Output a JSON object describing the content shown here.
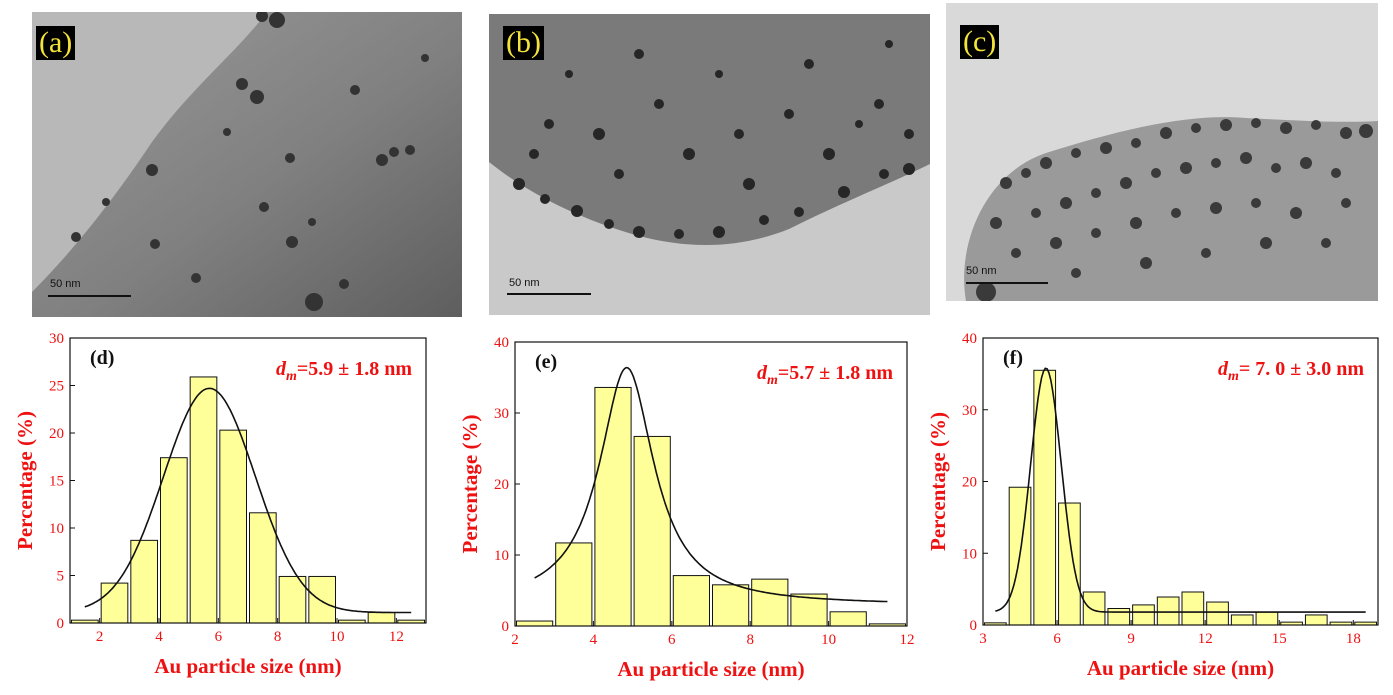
{
  "tem_panels": [
    {
      "tag": "(a)",
      "scale": "50 nm"
    },
    {
      "tag": "(b)",
      "scale": "50 nm"
    },
    {
      "tag": "(c)",
      "scale": "50 nm"
    }
  ],
  "colors": {
    "bar_fill": "#ffff99",
    "axis_text": "#ee1111",
    "curve": "#111111"
  },
  "chart_data": [
    {
      "type": "bar",
      "panel_tag": "(d)",
      "dm_prefix": "d",
      "dm_sub": "m",
      "dm_value": "=5.9 ± 1.8 nm",
      "xlabel": "Au particle size (nm)",
      "ylabel": "Percentage (%)",
      "xlim": [
        1,
        13
      ],
      "ylim": [
        0,
        30
      ],
      "xticks": [
        2,
        4,
        6,
        8,
        10,
        12
      ],
      "yticks": [
        0,
        5,
        10,
        15,
        20,
        25,
        30
      ],
      "bin_width": 1,
      "bin_centers": [
        1.5,
        2.5,
        3.5,
        4.5,
        5.5,
        6.5,
        7.5,
        8.5,
        9.5,
        10.5,
        11.5,
        12.5
      ],
      "values": [
        0.3,
        4.2,
        8.7,
        17.4,
        25.9,
        20.3,
        11.6,
        4.9,
        4.9,
        0.3,
        1.1,
        0.3
      ],
      "fit": {
        "type": "gaussian",
        "center": 5.7,
        "sigma": 1.55,
        "amplitude": 23.6,
        "baseline": 1.1
      }
    },
    {
      "type": "bar",
      "panel_tag": "(e)",
      "dm_prefix": "d",
      "dm_sub": "m",
      "dm_value": "=5.7 ± 1.8 nm",
      "xlabel": "Au particle size (nm)",
      "ylabel": "Percentage (%)",
      "xlim": [
        2,
        12
      ],
      "ylim": [
        0,
        40
      ],
      "xticks": [
        2,
        4,
        6,
        8,
        10,
        12
      ],
      "yticks": [
        0,
        10,
        20,
        30,
        40
      ],
      "bin_width": 1,
      "bin_centers": [
        2.5,
        3.5,
        4.5,
        5.5,
        6.5,
        7.5,
        8.5,
        9.5,
        10.5,
        11.5
      ],
      "values": [
        0.7,
        11.7,
        33.6,
        26.7,
        7.1,
        5.8,
        6.6,
        4.5,
        2.0,
        0.3
      ],
      "fit": {
        "type": "lorentzian",
        "center": 4.85,
        "gamma": 0.85,
        "amplitude": 33.5,
        "baseline": 2.9
      }
    },
    {
      "type": "bar",
      "panel_tag": "(f)",
      "dm_prefix": "d",
      "dm_sub": "m",
      "dm_value": "= 7. 0 ± 3.0 nm",
      "xlabel": "Au particle size (nm)",
      "ylabel": "Percentage (%)",
      "xlim": [
        3,
        19
      ],
      "ylim": [
        0,
        40
      ],
      "xticks": [
        3,
        6,
        9,
        12,
        15,
        18
      ],
      "yticks": [
        0,
        10,
        20,
        30,
        40
      ],
      "bin_width": 1,
      "bin_centers": [
        3.5,
        4.5,
        5.5,
        6.5,
        7.5,
        8.5,
        9.5,
        10.5,
        11.5,
        12.5,
        13.5,
        14.5,
        15.5,
        16.5,
        17.5,
        18.5
      ],
      "values": [
        0.3,
        19.2,
        35.5,
        17.0,
        4.6,
        2.3,
        2.8,
        3.9,
        4.6,
        3.2,
        1.4,
        1.8,
        0.4,
        1.4,
        0.4,
        0.4
      ],
      "fit": {
        "type": "gaussian",
        "center": 5.55,
        "sigma": 0.62,
        "amplitude": 34.0,
        "baseline": 1.8
      }
    }
  ]
}
